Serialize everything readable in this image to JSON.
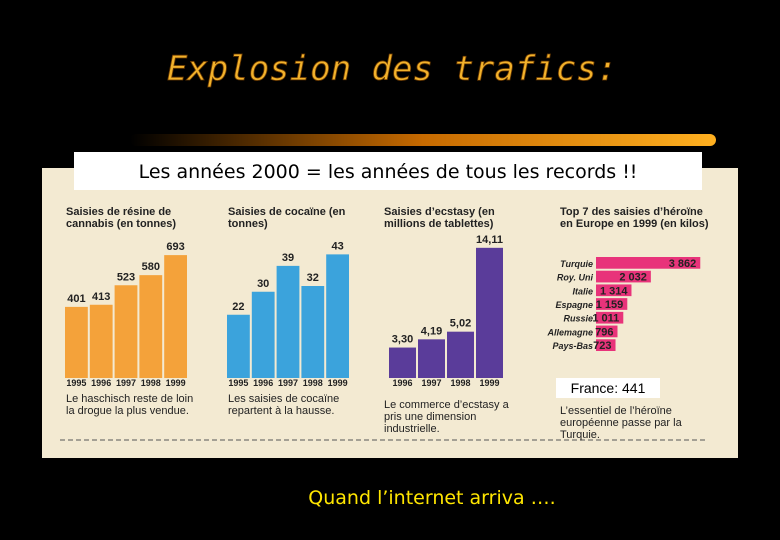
{
  "slide": {
    "title": "Explosion des trafics:",
    "subtitle": "Les années 2000 = les années de tous les records !!",
    "footer": "Quand l’internet arriva …."
  },
  "chart_data": [
    {
      "type": "bar",
      "title": "Saisies de résine de cannabis (en tonnes)",
      "categories": [
        "1995",
        "1996",
        "1997",
        "1998",
        "1999"
      ],
      "values": [
        401,
        413,
        523,
        580,
        693
      ],
      "color": "#f4a23a",
      "ylim": [
        0,
        750
      ],
      "caption": "Le haschisch reste de loin la drogue la plus vendue."
    },
    {
      "type": "bar",
      "title": "Saisies de cocaïne (en tonnes)",
      "categories": [
        "1995",
        "1996",
        "1997",
        "1998",
        "1999"
      ],
      "values": [
        22,
        30,
        39,
        32,
        43
      ],
      "color": "#3ba3dc",
      "ylim": [
        0,
        48
      ],
      "caption": "Les saisies de cocaïne repartent à la hausse."
    },
    {
      "type": "bar",
      "title": "Saisies d’ecstasy (en millions de tablettes)",
      "categories": [
        "1996",
        "1997",
        "1998",
        "1999"
      ],
      "values": [
        3.3,
        4.19,
        5.02,
        14.11
      ],
      "value_labels": [
        "3,30",
        "4,19",
        "5,02",
        "14,11"
      ],
      "color": "#5a3c9a",
      "ylim": [
        0,
        15.5
      ],
      "caption": "Le commerce d’ecstasy a pris une dimension industrielle."
    },
    {
      "type": "hbar",
      "title": "Top 7 des saisies d’héroïne en Europe en 1999 (en kilos)",
      "categories": [
        "Turquie",
        "Roy. Uni",
        "Italie",
        "Espagne",
        "Russie",
        "Allemagne",
        "Pays-Bas"
      ],
      "values": [
        3862,
        2032,
        1314,
        1159,
        1011,
        796,
        723
      ],
      "value_labels": [
        "3 862",
        "2 032",
        "1 314",
        "1 159",
        "1 011",
        "796",
        "723"
      ],
      "color": "#e8337a",
      "xlim": [
        0,
        4000
      ],
      "annotation": "France: 441",
      "caption": "L’essentiel de l’héroïne européenne passe par la Turquie."
    }
  ]
}
